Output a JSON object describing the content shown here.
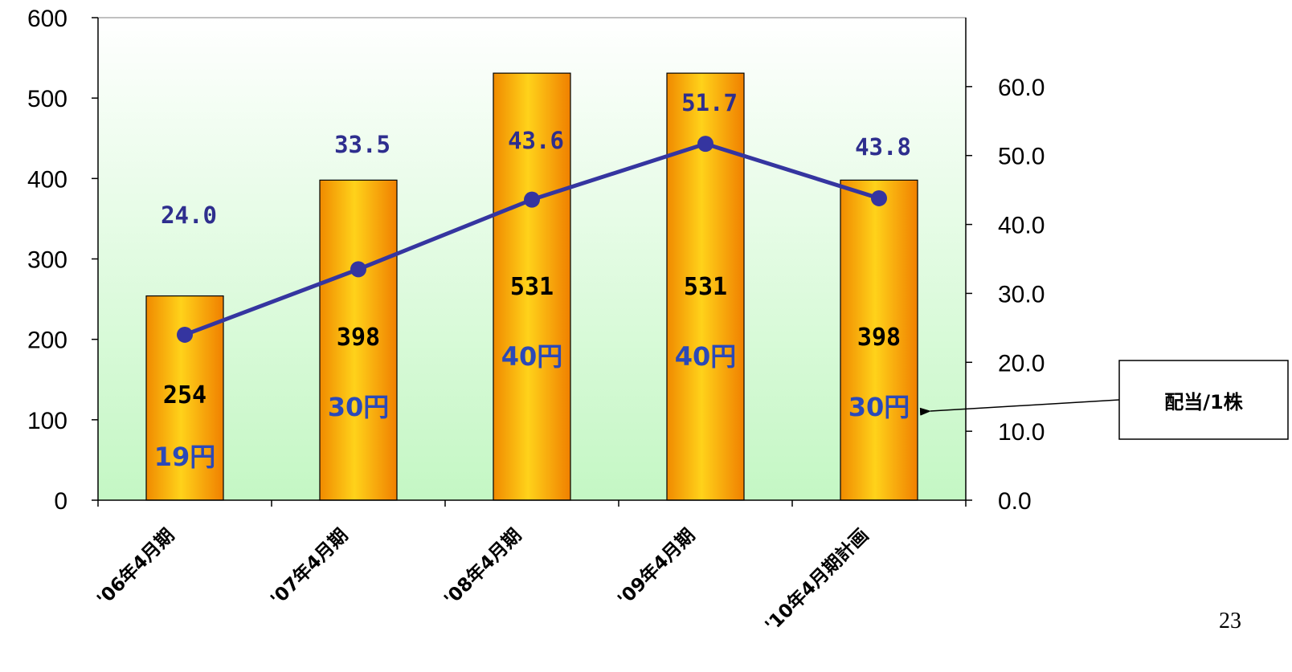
{
  "chart_data": {
    "type": "bar",
    "categories": [
      "'06年4月期",
      "'07年4月期",
      "'08年4月期",
      "'09年4月期",
      "'10年4月期計画"
    ],
    "bar_series": {
      "values": [
        254,
        398,
        531,
        531,
        398
      ],
      "labels": [
        "254",
        "398",
        "531",
        "531",
        "398"
      ],
      "color": "#ffb300"
    },
    "dividends": [
      "19円",
      "30円",
      "40円",
      "40円",
      "30円"
    ],
    "line_series": {
      "type": "line",
      "values": [
        24.0,
        33.5,
        43.6,
        51.7,
        43.8
      ],
      "labels": [
        "24.0",
        "33.5",
        "43.6",
        "51.7",
        "43.8"
      ],
      "color": "#3535a0"
    },
    "y_left": {
      "ylim": [
        0,
        600
      ],
      "ticks": [
        "0",
        "100",
        "200",
        "300",
        "400",
        "500",
        "600"
      ]
    },
    "y_right": {
      "ylim": [
        0.0,
        70.0
      ],
      "ticks": [
        "0.0",
        "10.0",
        "20.0",
        "30.0",
        "40.0",
        "50.0",
        "60.0"
      ]
    },
    "annotation": {
      "text": "配当/1株",
      "points_to": "'10年4月期計画"
    },
    "title": "",
    "xlabel": "",
    "ylabel": ""
  },
  "page_number": "23"
}
